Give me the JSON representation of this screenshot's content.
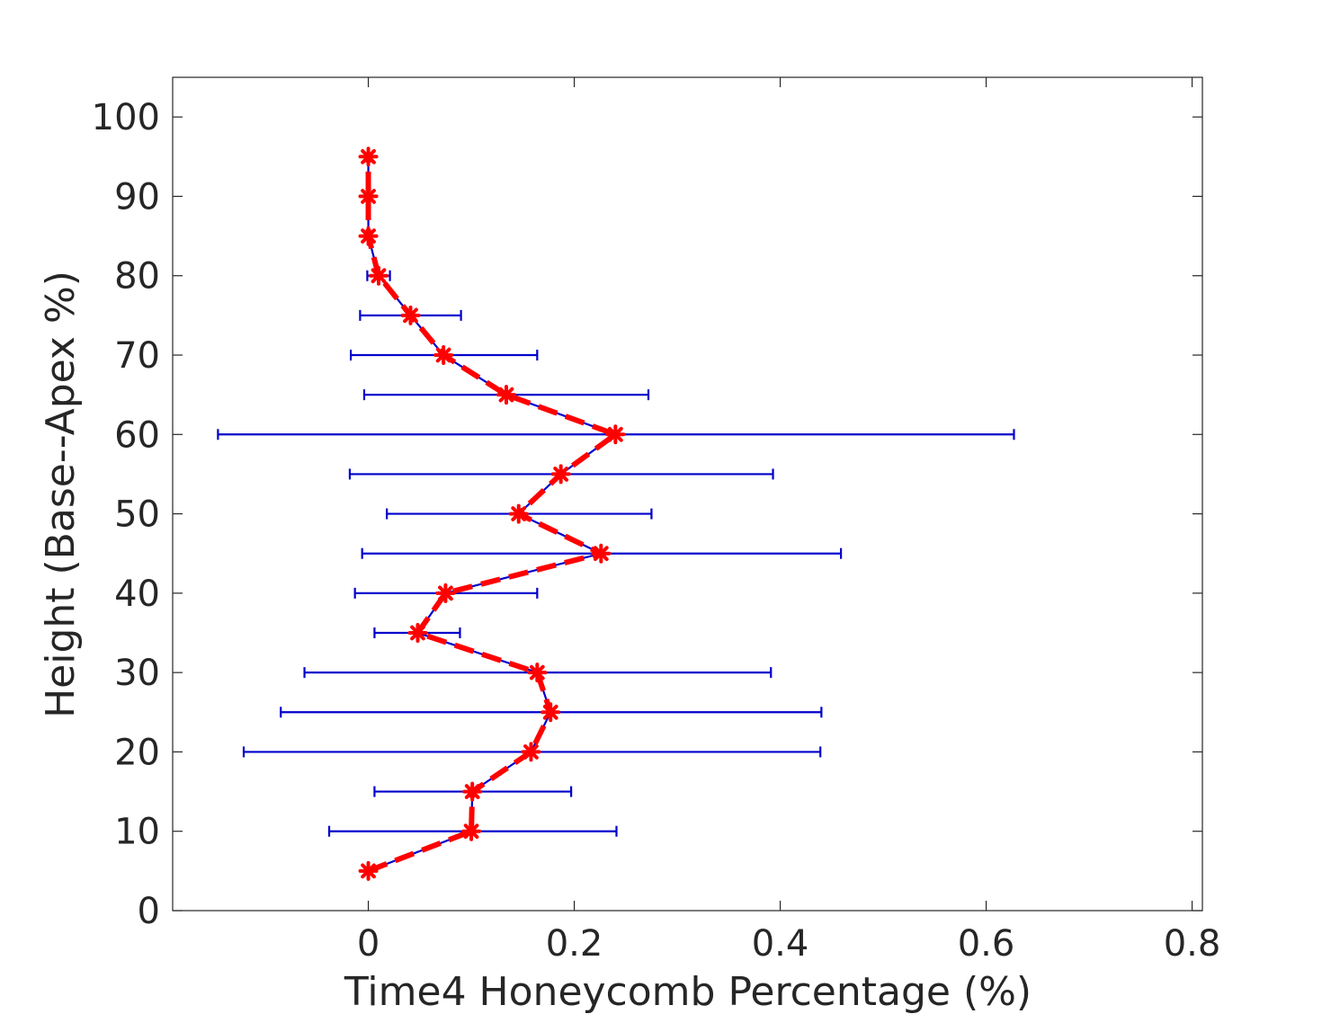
{
  "chart_data": {
    "type": "line",
    "orientation": "horizontal-error-bars",
    "xlabel": "Time4 Honeycomb Percentage (%)",
    "ylabel": "Height (Base--Apex %)",
    "xlim": [
      -0.19,
      0.81
    ],
    "ylim": [
      0,
      105
    ],
    "xticks": [
      0,
      0.2,
      0.4,
      0.6,
      0.8
    ],
    "xtick_labels": [
      "0",
      "0.2",
      "0.4",
      "0.6",
      "0.8"
    ],
    "yticks": [
      0,
      10,
      20,
      30,
      40,
      50,
      60,
      70,
      80,
      90,
      100
    ],
    "ytick_labels": [
      "0",
      "10",
      "20",
      "30",
      "40",
      "50",
      "60",
      "70",
      "80",
      "90",
      "100"
    ],
    "grid": false,
    "colors": {
      "errorbar": "#0000cc",
      "marker": "#ff0000",
      "axis": "#262626"
    },
    "series": [
      {
        "style": "blue line with horizontal error bars, red dashed line with star markers",
        "points": [
          {
            "y": 5,
            "x": 0.0,
            "xerr_low": 0.0,
            "xerr_high": 0.0
          },
          {
            "y": 10,
            "x": 0.1,
            "xerr_low": -0.038,
            "xerr_high": 0.241
          },
          {
            "y": 15,
            "x": 0.101,
            "xerr_low": 0.006,
            "xerr_high": 0.197
          },
          {
            "y": 20,
            "x": 0.158,
            "xerr_low": -0.121,
            "xerr_high": 0.439
          },
          {
            "y": 25,
            "x": 0.177,
            "xerr_low": -0.085,
            "xerr_high": 0.44
          },
          {
            "y": 30,
            "x": 0.164,
            "xerr_low": -0.062,
            "xerr_high": 0.391
          },
          {
            "y": 35,
            "x": 0.048,
            "xerr_low": 0.006,
            "xerr_high": 0.089
          },
          {
            "y": 40,
            "x": 0.075,
            "xerr_low": -0.013,
            "xerr_high": 0.164
          },
          {
            "y": 45,
            "x": 0.226,
            "xerr_low": -0.006,
            "xerr_high": 0.459
          },
          {
            "y": 50,
            "x": 0.146,
            "xerr_low": 0.018,
            "xerr_high": 0.275
          },
          {
            "y": 55,
            "x": 0.187,
            "xerr_low": -0.018,
            "xerr_high": 0.393
          },
          {
            "y": 60,
            "x": 0.24,
            "xerr_low": -0.146,
            "xerr_high": 0.627
          },
          {
            "y": 65,
            "x": 0.134,
            "xerr_low": -0.004,
            "xerr_high": 0.272
          },
          {
            "y": 70,
            "x": 0.073,
            "xerr_low": -0.017,
            "xerr_high": 0.164
          },
          {
            "y": 75,
            "x": 0.041,
            "xerr_low": -0.008,
            "xerr_high": 0.09
          },
          {
            "y": 80,
            "x": 0.01,
            "xerr_low": -0.001,
            "xerr_high": 0.021
          },
          {
            "y": 85,
            "x": 0.0,
            "xerr_low": 0.0,
            "xerr_high": 0.0
          },
          {
            "y": 90,
            "x": 0.0,
            "xerr_low": 0.0,
            "xerr_high": 0.0
          },
          {
            "y": 95,
            "x": 0.0,
            "xerr_low": 0.0,
            "xerr_high": 0.0
          }
        ]
      }
    ]
  }
}
